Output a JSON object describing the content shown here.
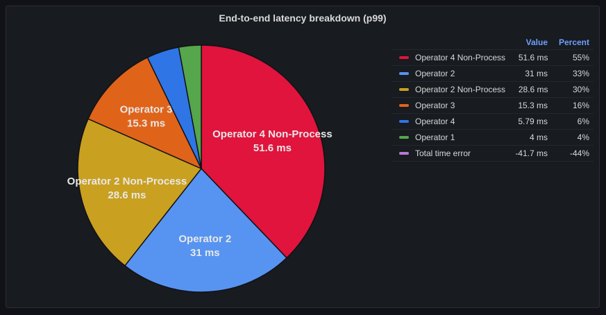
{
  "panel": {
    "title": "End-to-end latency breakdown (p99)"
  },
  "legend": {
    "value_header": "Value",
    "percent_header": "Percent"
  },
  "chart_data": {
    "type": "pie",
    "title": "End-to-end latency breakdown (p99)",
    "legend_placement": "right",
    "unit": "ms",
    "series": [
      {
        "name": "Operator 4 Non-Process",
        "value": 51.6,
        "value_text": "51.6 ms",
        "percent": "55%",
        "color": "#e0143c",
        "show_label": true
      },
      {
        "name": "Operator 2",
        "value": 31,
        "value_text": "31 ms",
        "percent": "33%",
        "color": "#5794f2",
        "show_label": true
      },
      {
        "name": "Operator 2 Non-Process",
        "value": 28.6,
        "value_text": "28.6 ms",
        "percent": "30%",
        "color": "#c9a020",
        "show_label": true
      },
      {
        "name": "Operator 3",
        "value": 15.3,
        "value_text": "15.3 ms",
        "percent": "16%",
        "color": "#e0631a",
        "show_label": true
      },
      {
        "name": "Operator 4",
        "value": 5.79,
        "value_text": "5.79 ms",
        "percent": "6%",
        "color": "#2f75e6",
        "show_label": false
      },
      {
        "name": "Operator 1",
        "value": 4,
        "value_text": "4 ms",
        "percent": "4%",
        "color": "#56a64b",
        "show_label": false
      },
      {
        "name": "Total time error",
        "value": -41.7,
        "value_text": "-41.7 ms",
        "percent": "-44%",
        "color": "#b877d9",
        "show_label": false
      }
    ]
  }
}
